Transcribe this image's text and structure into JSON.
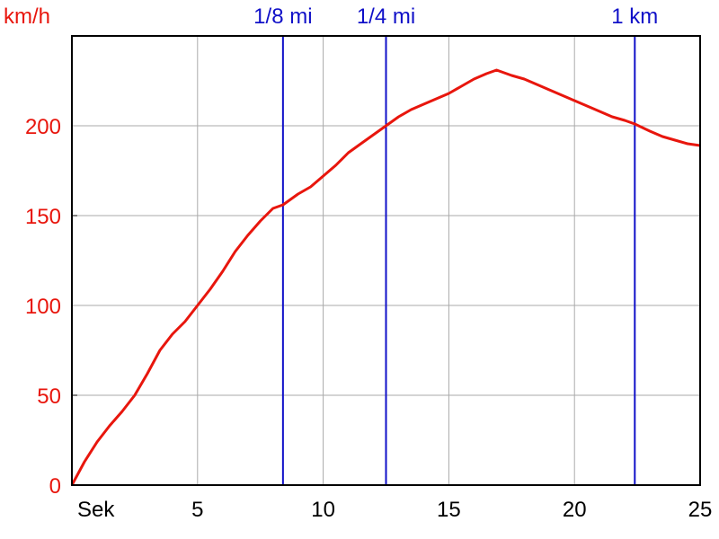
{
  "chart_data": {
    "type": "line",
    "ylabel": "km/h",
    "xlabel": "Sek",
    "xlim": [
      0,
      25
    ],
    "ylim": [
      0,
      250
    ],
    "x_ticks": [
      5,
      10,
      15,
      20,
      25
    ],
    "x_tick_labels": [
      "5",
      "10",
      "15",
      "20",
      "25"
    ],
    "y_ticks": [
      0,
      50,
      100,
      150,
      200
    ],
    "y_tick_labels": [
      "0",
      "50",
      "100",
      "150",
      "200"
    ],
    "grid": true,
    "markers": [
      {
        "label": "1/8 mi",
        "x": 8.4
      },
      {
        "label": "1/4 mi",
        "x": 12.5
      },
      {
        "label": "1 km",
        "x": 22.4
      }
    ],
    "series": [
      {
        "color": "#e8160d",
        "x": [
          0,
          0.5,
          1,
          1.5,
          2,
          2.5,
          3,
          3.5,
          4,
          4.5,
          5,
          5.5,
          6,
          6.5,
          7,
          7.5,
          8,
          8.4,
          9,
          9.5,
          10,
          10.5,
          11,
          11.5,
          12,
          12.5,
          13,
          13.5,
          14,
          14.5,
          15,
          15.5,
          16,
          16.5,
          16.9,
          17.5,
          18,
          18.5,
          19,
          19.5,
          20,
          20.5,
          21,
          21.5,
          22,
          22.4,
          23,
          23.5,
          24,
          24.5,
          25
        ],
        "y": [
          0,
          13,
          24,
          33,
          41,
          50,
          62,
          75,
          84,
          91,
          100,
          109,
          119,
          130,
          139,
          147,
          154,
          156,
          162,
          166,
          172,
          178,
          185,
          190,
          195,
          200,
          205,
          209,
          212,
          215,
          218,
          222,
          226,
          229,
          231,
          228,
          226,
          223,
          220,
          217,
          214,
          211,
          208,
          205,
          203,
          201,
          197,
          194,
          192,
          190,
          189
        ]
      }
    ],
    "colors": {
      "curve": "#e8160d",
      "markers": "#1010c8",
      "grid": "#aaaaaa",
      "axes": "#000000",
      "y_ticks": "#e8160d"
    }
  }
}
